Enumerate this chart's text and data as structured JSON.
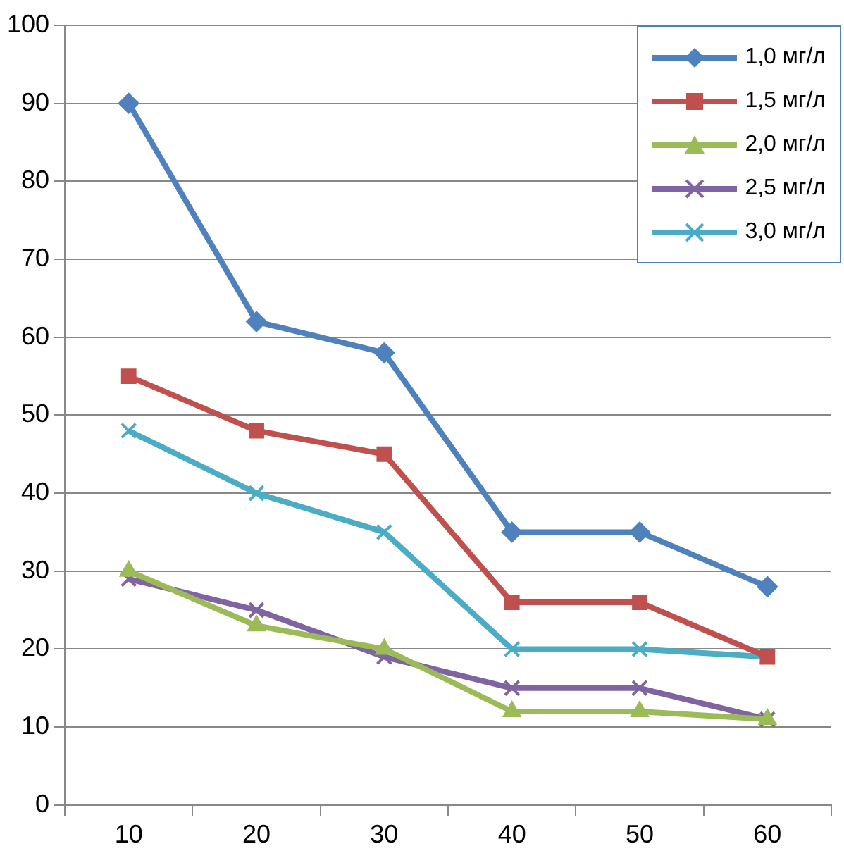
{
  "chart_data": {
    "type": "line",
    "categories": [
      "10",
      "20",
      "30",
      "40",
      "50",
      "60"
    ],
    "ylim": [
      0,
      100
    ],
    "yticks": [
      0,
      10,
      20,
      30,
      40,
      50,
      60,
      70,
      80,
      90,
      100
    ],
    "grid": "y",
    "legend": "top right",
    "line_style": "solid",
    "series": [
      {
        "name": "1,0 мг/л",
        "color": "#4f81bd",
        "marker": "diamond",
        "values": [
          90,
          62,
          58,
          35,
          35,
          28
        ]
      },
      {
        "name": "1,5 мг/л",
        "color": "#c0504d",
        "marker": "square",
        "values": [
          55,
          48,
          45,
          26,
          26,
          19
        ]
      },
      {
        "name": "2,0 мг/л",
        "color": "#9bbb59",
        "marker": "triangle",
        "values": [
          30,
          23,
          20,
          12,
          12,
          11
        ]
      },
      {
        "name": "2,5 мг/л",
        "color": "#8064a2",
        "marker": "cross",
        "values": [
          29,
          25,
          19,
          15,
          15,
          11
        ]
      },
      {
        "name": "3,0 мг/л",
        "color": "#4bacc6",
        "marker": "cross",
        "values": [
          48,
          40,
          35,
          20,
          20,
          19
        ]
      }
    ]
  }
}
